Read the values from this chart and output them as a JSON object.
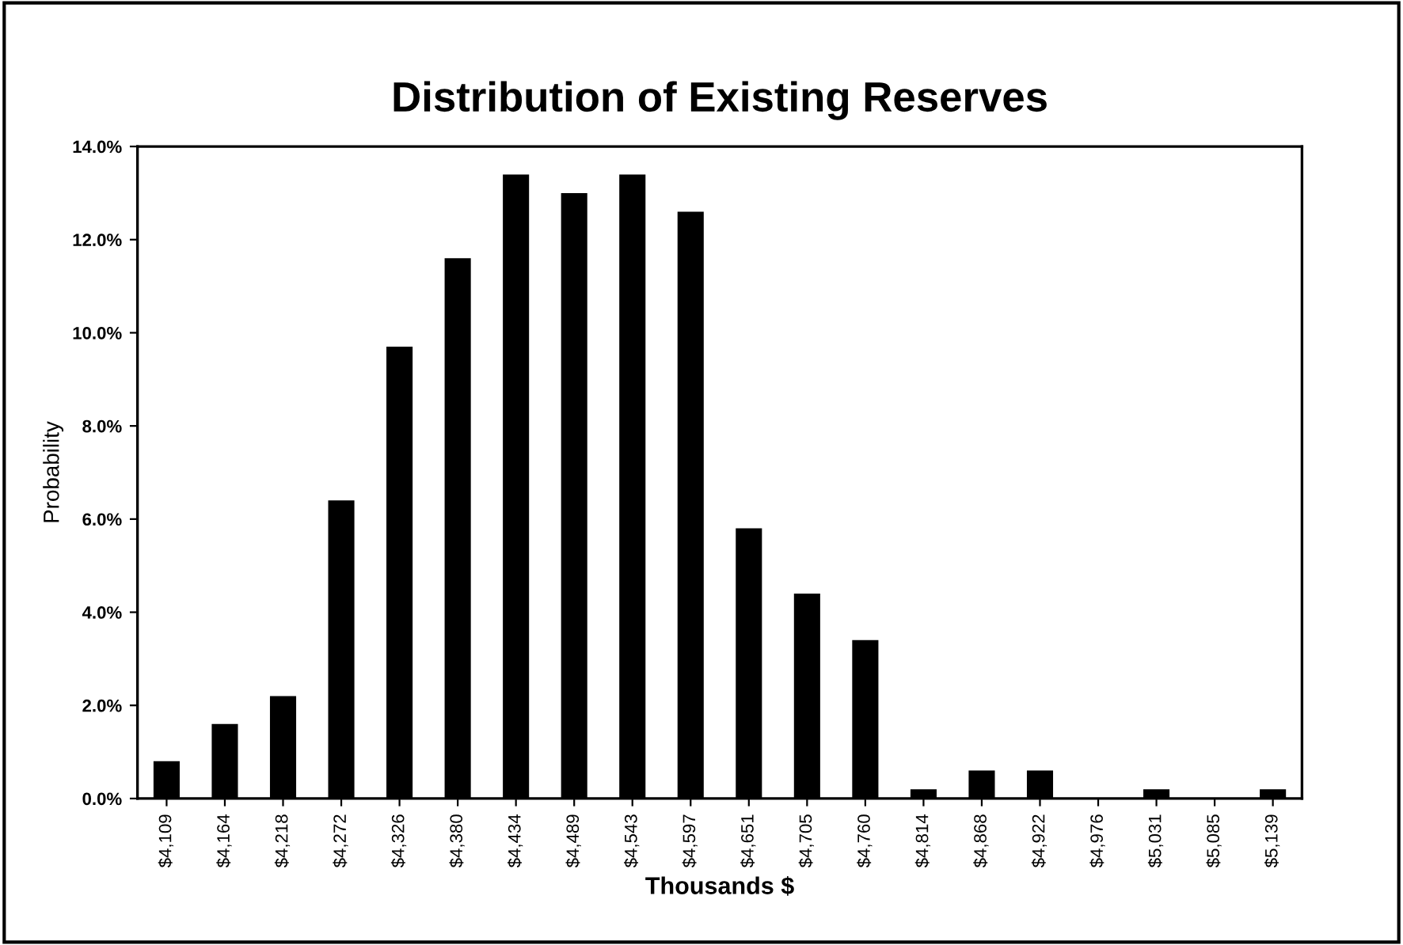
{
  "chart_data": {
    "type": "bar",
    "title": "Distribution of Existing Reserves",
    "xlabel": "Thousands $",
    "ylabel": "Probability",
    "categories": [
      "$4,109",
      "$4,164",
      "$4,218",
      "$4,272",
      "$4,326",
      "$4,380",
      "$4,434",
      "$4,489",
      "$4,543",
      "$4,597",
      "$4,651",
      "$4,705",
      "$4,760",
      "$4,814",
      "$4,868",
      "$4,922",
      "$4,976",
      "$5,031",
      "$5,085",
      "$5,139"
    ],
    "values": [
      0.8,
      1.6,
      2.2,
      6.4,
      9.7,
      11.6,
      13.4,
      13.0,
      13.4,
      12.6,
      5.8,
      4.4,
      3.4,
      0.2,
      0.6,
      0.6,
      0,
      0.2,
      0,
      0.2
    ],
    "color": "#000000",
    "ylim": [
      0,
      14
    ],
    "yticks": [
      {
        "value": 0,
        "label": "0.0%"
      },
      {
        "value": 2,
        "label": "2.0%"
      },
      {
        "value": 4,
        "label": "4.0%"
      },
      {
        "value": 6,
        "label": "6.0%"
      },
      {
        "value": 8,
        "label": "8.0%"
      },
      {
        "value": 10,
        "label": "10.0%"
      },
      {
        "value": 12,
        "label": "12.0%"
      },
      {
        "value": 14,
        "label": "14.0%"
      }
    ],
    "grid": false,
    "legend": false
  }
}
